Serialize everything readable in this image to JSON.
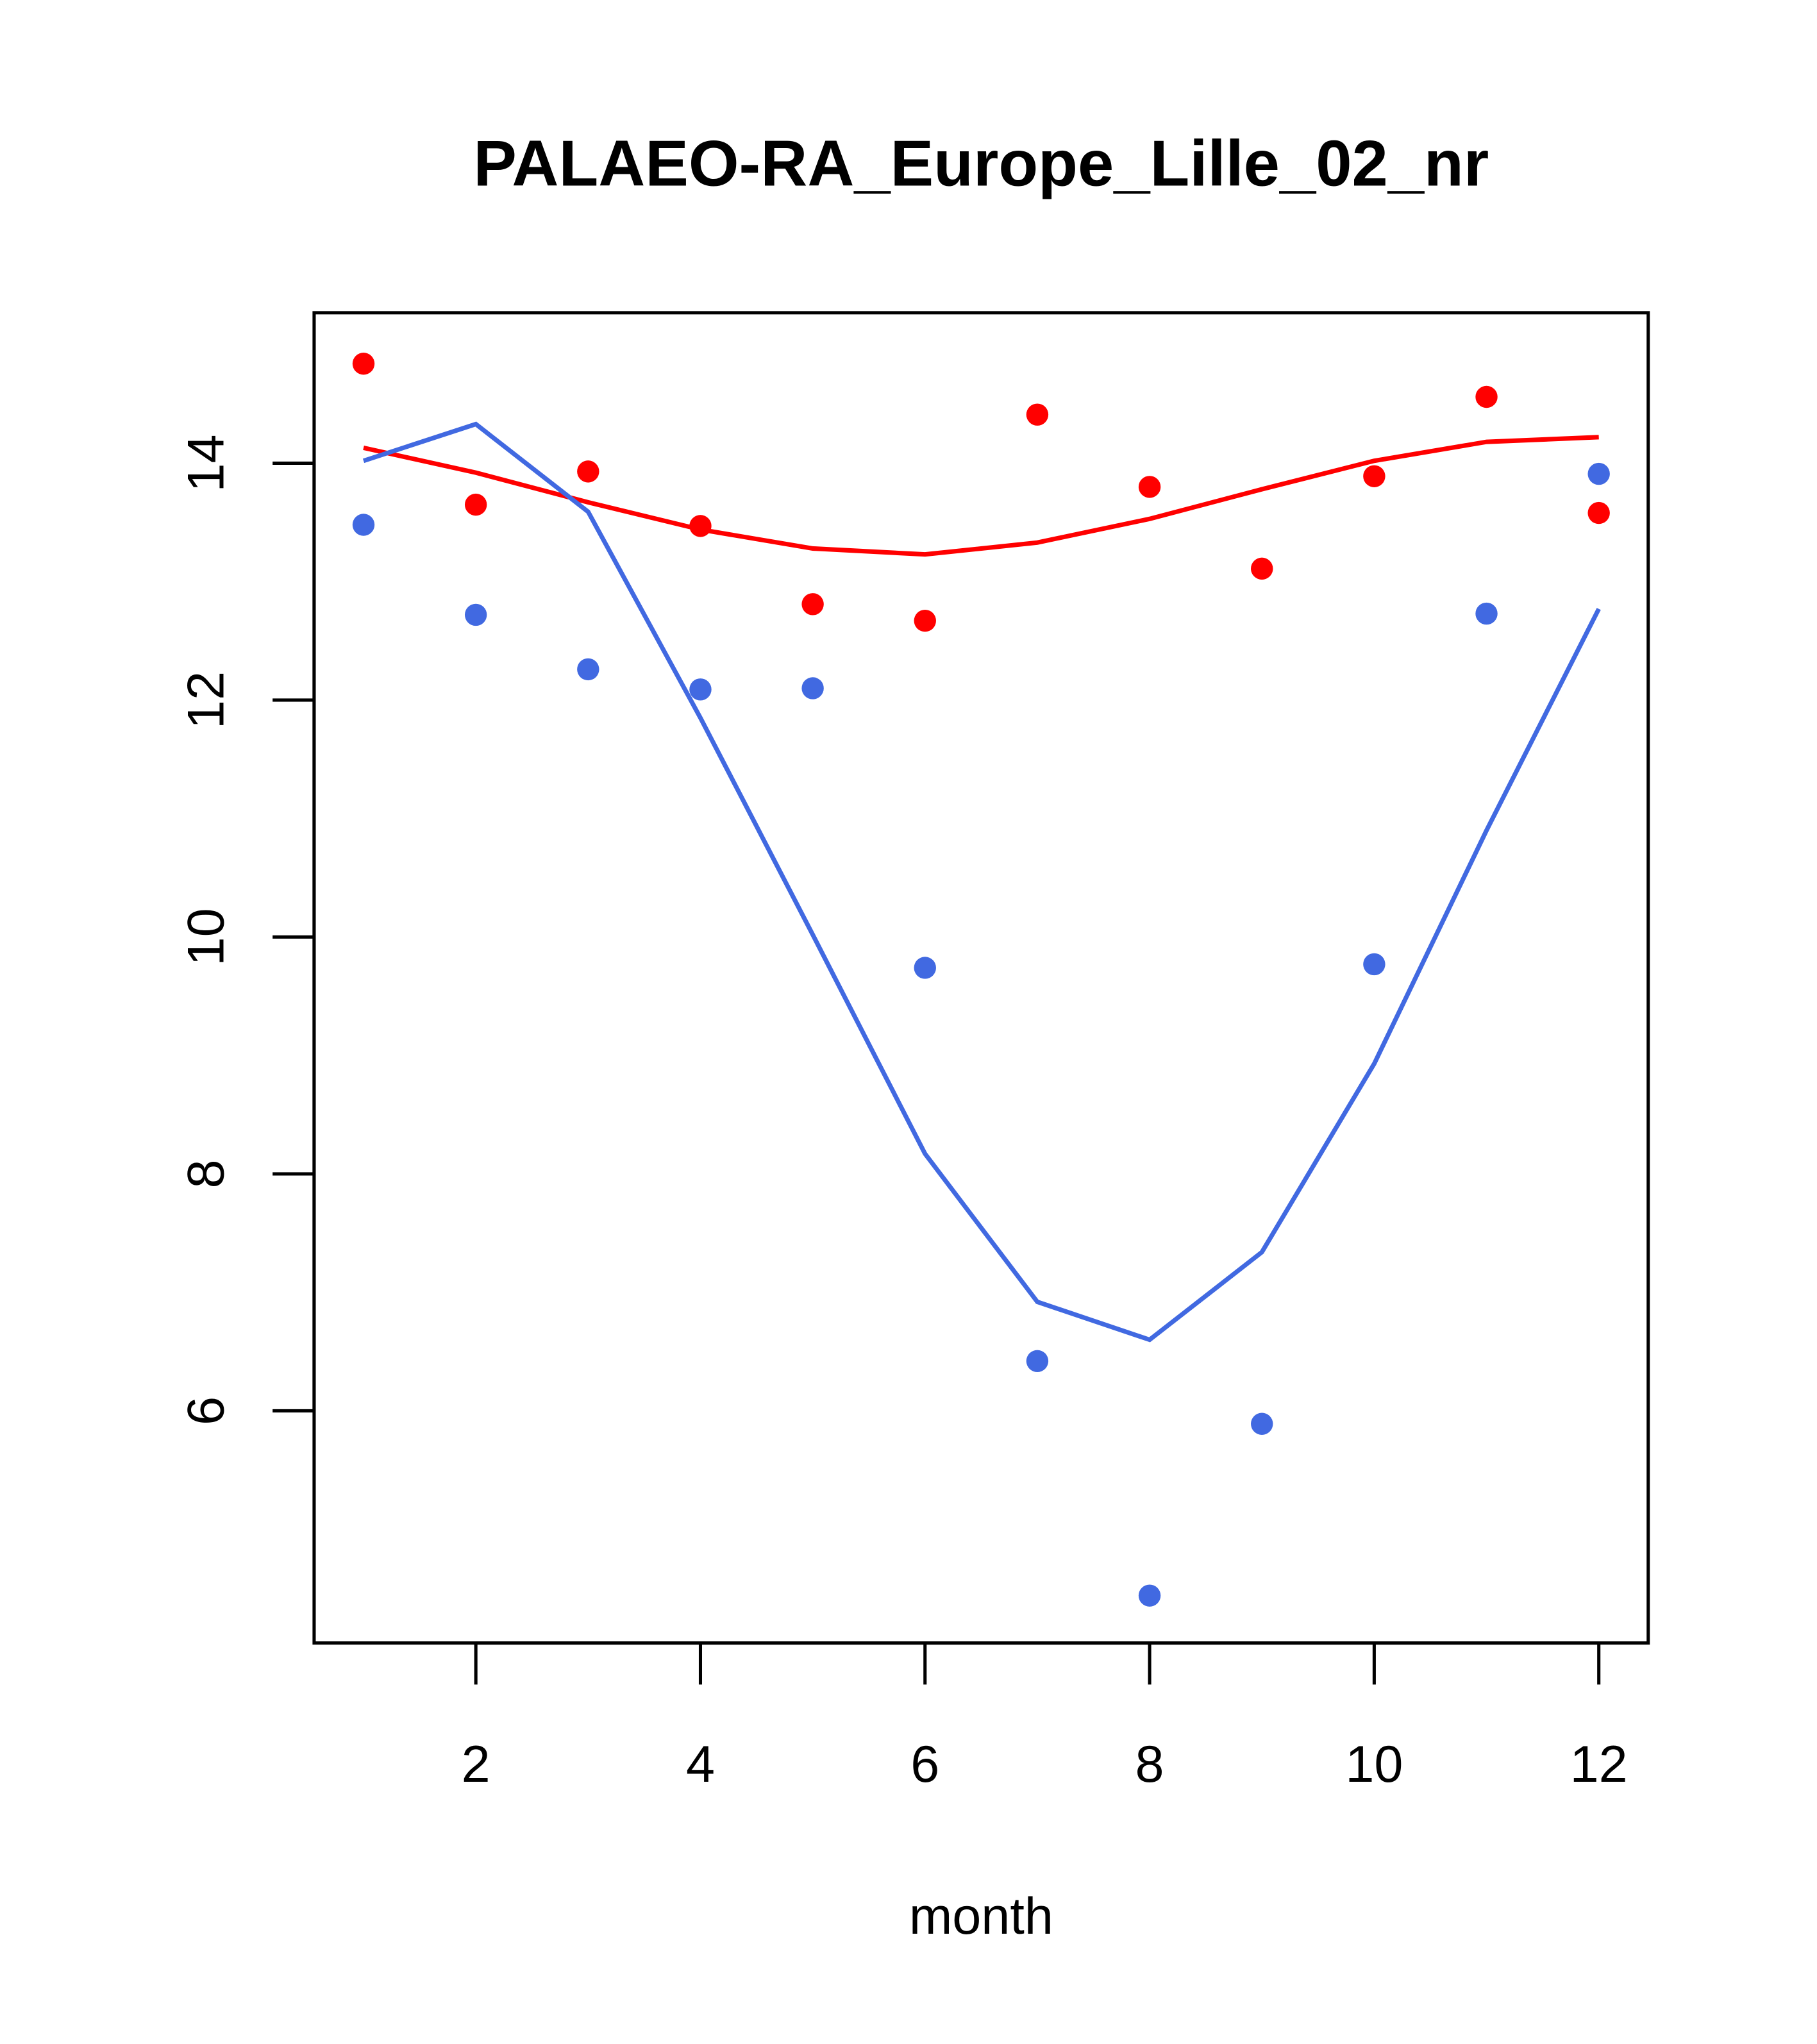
{
  "chart_data": {
    "type": "scatter",
    "title": "PALAEO-RA_Europe_Lille_02_nr",
    "xlabel": "month",
    "ylabel": "",
    "xlim": [
      0.56,
      12.44
    ],
    "ylim": [
      4.04,
      15.27
    ],
    "xticks": [
      2,
      4,
      6,
      8,
      10,
      12
    ],
    "yticks": [
      6,
      8,
      10,
      12,
      14
    ],
    "grid": false,
    "x": [
      1,
      2,
      3,
      4,
      5,
      6,
      7,
      8,
      9,
      10,
      11,
      12
    ],
    "series": [
      {
        "name": "red points",
        "kind": "points",
        "color": "#ff0000",
        "values": [
          14.84,
          13.65,
          13.93,
          13.47,
          12.81,
          12.67,
          14.41,
          13.8,
          13.11,
          13.89,
          14.56,
          13.58
        ]
      },
      {
        "name": "blue points",
        "kind": "points",
        "color": "#4169e1",
        "values": [
          13.48,
          12.72,
          12.26,
          12.09,
          12.1,
          9.74,
          6.42,
          4.44,
          5.89,
          9.77,
          12.73,
          13.91
        ]
      },
      {
        "name": "red line",
        "kind": "line",
        "color": "#ff0000",
        "values": [
          14.13,
          13.92,
          13.67,
          13.44,
          13.28,
          13.23,
          13.33,
          13.53,
          13.78,
          14.02,
          14.18,
          14.22
        ]
      },
      {
        "name": "blue line",
        "kind": "line",
        "color": "#4169e1",
        "values": [
          14.02,
          14.33,
          13.59,
          11.85,
          10.02,
          8.17,
          6.92,
          6.6,
          7.34,
          8.93,
          10.9,
          12.77
        ]
      }
    ]
  }
}
